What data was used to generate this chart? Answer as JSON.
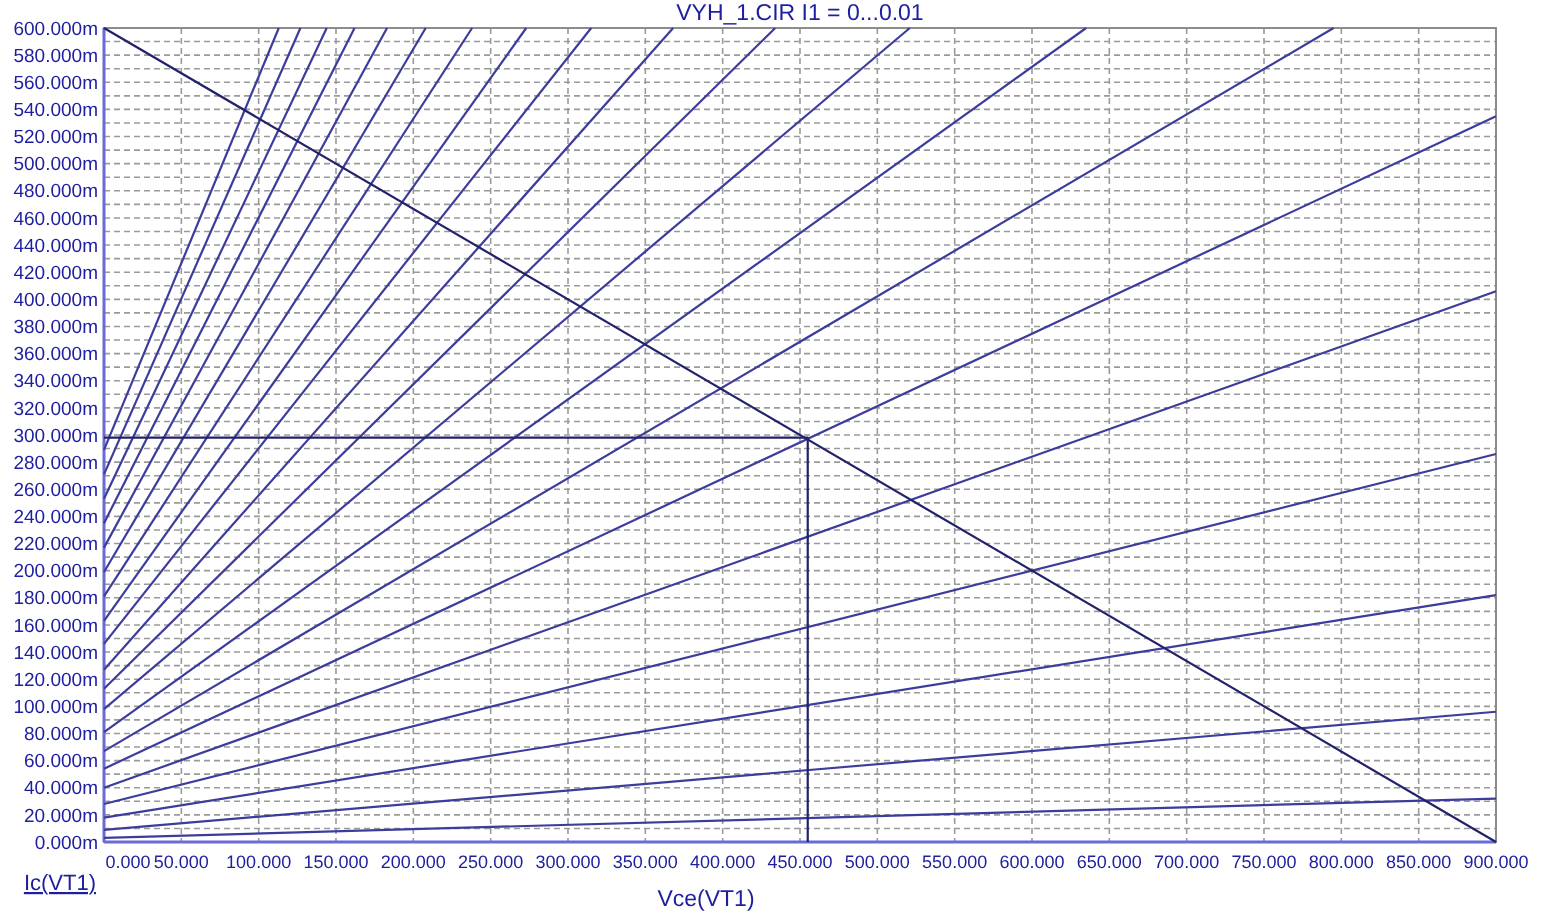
{
  "chart_data": {
    "type": "line",
    "title": "VYH_1.CIR I1 = 0...0.01",
    "xlabel": "Vce(VT1)",
    "ylabel": "Ic(VT1)",
    "xlim": [
      0,
      900
    ],
    "ylim": [
      0,
      600
    ],
    "marker": "none",
    "line_style": "solid",
    "grid": true,
    "xticks": [
      {
        "value": 0,
        "label": "0.000"
      },
      {
        "value": 50,
        "label": "50.000"
      },
      {
        "value": 100,
        "label": "100.000"
      },
      {
        "value": 150,
        "label": "150.000"
      },
      {
        "value": 200,
        "label": "200.000"
      },
      {
        "value": 250,
        "label": "250.000"
      },
      {
        "value": 300,
        "label": "300.000"
      },
      {
        "value": 350,
        "label": "350.000"
      },
      {
        "value": 400,
        "label": "400.000"
      },
      {
        "value": 450,
        "label": "450.000"
      },
      {
        "value": 500,
        "label": "500.000"
      },
      {
        "value": 550,
        "label": "550.000"
      },
      {
        "value": 600,
        "label": "600.000"
      },
      {
        "value": 650,
        "label": "650.000"
      },
      {
        "value": 700,
        "label": "700.000"
      },
      {
        "value": 750,
        "label": "750.000"
      },
      {
        "value": 800,
        "label": "800.000"
      },
      {
        "value": 850,
        "label": "850.000"
      },
      {
        "value": 900,
        "label": "900.000"
      }
    ],
    "yticks": [
      {
        "value": 0,
        "label": "0.000m"
      },
      {
        "value": 10,
        "label": null
      },
      {
        "value": 20,
        "label": "20.000m"
      },
      {
        "value": 30,
        "label": null
      },
      {
        "value": 40,
        "label": "40.000m"
      },
      {
        "value": 50,
        "label": null
      },
      {
        "value": 60,
        "label": "60.000m"
      },
      {
        "value": 70,
        "label": null
      },
      {
        "value": 80,
        "label": "80.000m"
      },
      {
        "value": 90,
        "label": null
      },
      {
        "value": 100,
        "label": "100.000m"
      },
      {
        "value": 110,
        "label": null
      },
      {
        "value": 120,
        "label": "120.000m"
      },
      {
        "value": 130,
        "label": null
      },
      {
        "value": 140,
        "label": "140.000m"
      },
      {
        "value": 150,
        "label": null
      },
      {
        "value": 160,
        "label": "160.000m"
      },
      {
        "value": 170,
        "label": null
      },
      {
        "value": 180,
        "label": "180.000m"
      },
      {
        "value": 190,
        "label": null
      },
      {
        "value": 200,
        "label": "200.000m"
      },
      {
        "value": 210,
        "label": null
      },
      {
        "value": 220,
        "label": "220.000m"
      },
      {
        "value": 230,
        "label": null
      },
      {
        "value": 240,
        "label": "240.000m"
      },
      {
        "value": 250,
        "label": null
      },
      {
        "value": 260,
        "label": "260.000m"
      },
      {
        "value": 270,
        "label": null
      },
      {
        "value": 280,
        "label": "280.000m"
      },
      {
        "value": 290,
        "label": null
      },
      {
        "value": 300,
        "label": "300.000m"
      },
      {
        "value": 310,
        "label": null
      },
      {
        "value": 320,
        "label": "320.000m"
      },
      {
        "value": 330,
        "label": null
      },
      {
        "value": 340,
        "label": "340.000m"
      },
      {
        "value": 350,
        "label": null
      },
      {
        "value": 360,
        "label": "360.000m"
      },
      {
        "value": 370,
        "label": null
      },
      {
        "value": 380,
        "label": "380.000m"
      },
      {
        "value": 390,
        "label": null
      },
      {
        "value": 400,
        "label": "400.000m"
      },
      {
        "value": 410,
        "label": null
      },
      {
        "value": 420,
        "label": "420.000m"
      },
      {
        "value": 430,
        "label": null
      },
      {
        "value": 440,
        "label": "440.000m"
      },
      {
        "value": 450,
        "label": null
      },
      {
        "value": 460,
        "label": "460.000m"
      },
      {
        "value": 470,
        "label": null
      },
      {
        "value": 480,
        "label": "480.000m"
      },
      {
        "value": 490,
        "label": null
      },
      {
        "value": 500,
        "label": "500.000m"
      },
      {
        "value": 510,
        "label": null
      },
      {
        "value": 520,
        "label": "520.000m"
      },
      {
        "value": 530,
        "label": null
      },
      {
        "value": 540,
        "label": "540.000m"
      },
      {
        "value": 550,
        "label": null
      },
      {
        "value": 560,
        "label": "560.000m"
      },
      {
        "value": 570,
        "label": null
      },
      {
        "value": 580,
        "label": "580.000m"
      },
      {
        "value": 590,
        "label": null
      },
      {
        "value": 600,
        "label": "600.000m"
      }
    ],
    "series": [
      {
        "color": "#3c3c9c",
        "x": [
          0,
          900
        ],
        "values": [
          3,
          32
        ]
      },
      {
        "color": "#3c3c9c",
        "x": [
          0,
          900
        ],
        "values": [
          9,
          96
        ]
      },
      {
        "color": "#3c3c9c",
        "x": [
          0,
          900
        ],
        "values": [
          18,
          182
        ]
      },
      {
        "color": "#3c3c9c",
        "x": [
          0,
          900
        ],
        "values": [
          28,
          286
        ]
      },
      {
        "color": "#3c3c9c",
        "x": [
          0,
          900
        ],
        "values": [
          40,
          406
        ]
      },
      {
        "color": "#3c3c9c",
        "x": [
          0,
          900
        ],
        "values": [
          54,
          535
        ]
      },
      {
        "color": "#3c3c9c",
        "x": [
          0,
          795
        ],
        "values": [
          67,
          600
        ]
      },
      {
        "color": "#3c3c9c",
        "x": [
          0,
          635
        ],
        "values": [
          81,
          600
        ]
      },
      {
        "color": "#3c3c9c",
        "x": [
          0,
          521
        ],
        "values": [
          98,
          600
        ]
      },
      {
        "color": "#3c3c9c",
        "x": [
          0,
          434
        ],
        "values": [
          113,
          600
        ]
      },
      {
        "color": "#3c3c9c",
        "x": [
          0,
          368
        ],
        "values": [
          127,
          600
        ]
      },
      {
        "color": "#3c3c9c",
        "x": [
          0,
          315
        ],
        "values": [
          146,
          600
        ]
      },
      {
        "color": "#3c3c9c",
        "x": [
          0,
          273
        ],
        "values": [
          163,
          600
        ]
      },
      {
        "color": "#3c3c9c",
        "x": [
          0,
          238
        ],
        "values": [
          181,
          600
        ]
      },
      {
        "color": "#3c3c9c",
        "x": [
          0,
          208
        ],
        "values": [
          199,
          600
        ]
      },
      {
        "color": "#3c3c9c",
        "x": [
          0,
          183
        ],
        "values": [
          217,
          600
        ]
      },
      {
        "color": "#3c3c9c",
        "x": [
          0,
          162
        ],
        "values": [
          235,
          600
        ]
      },
      {
        "color": "#3c3c9c",
        "x": [
          0,
          144
        ],
        "values": [
          253,
          600
        ]
      },
      {
        "color": "#3c3c9c",
        "x": [
          0,
          127
        ],
        "values": [
          271,
          600
        ]
      },
      {
        "color": "#3c3c9c",
        "x": [
          0,
          113
        ],
        "values": [
          289,
          600
        ]
      },
      {
        "color": "#22226a",
        "x": [
          0,
          900
        ],
        "values": [
          600,
          0
        ]
      },
      {
        "color": "#22226a",
        "x": [
          0,
          455,
          455
        ],
        "values": [
          298,
          298,
          0
        ]
      }
    ]
  }
}
